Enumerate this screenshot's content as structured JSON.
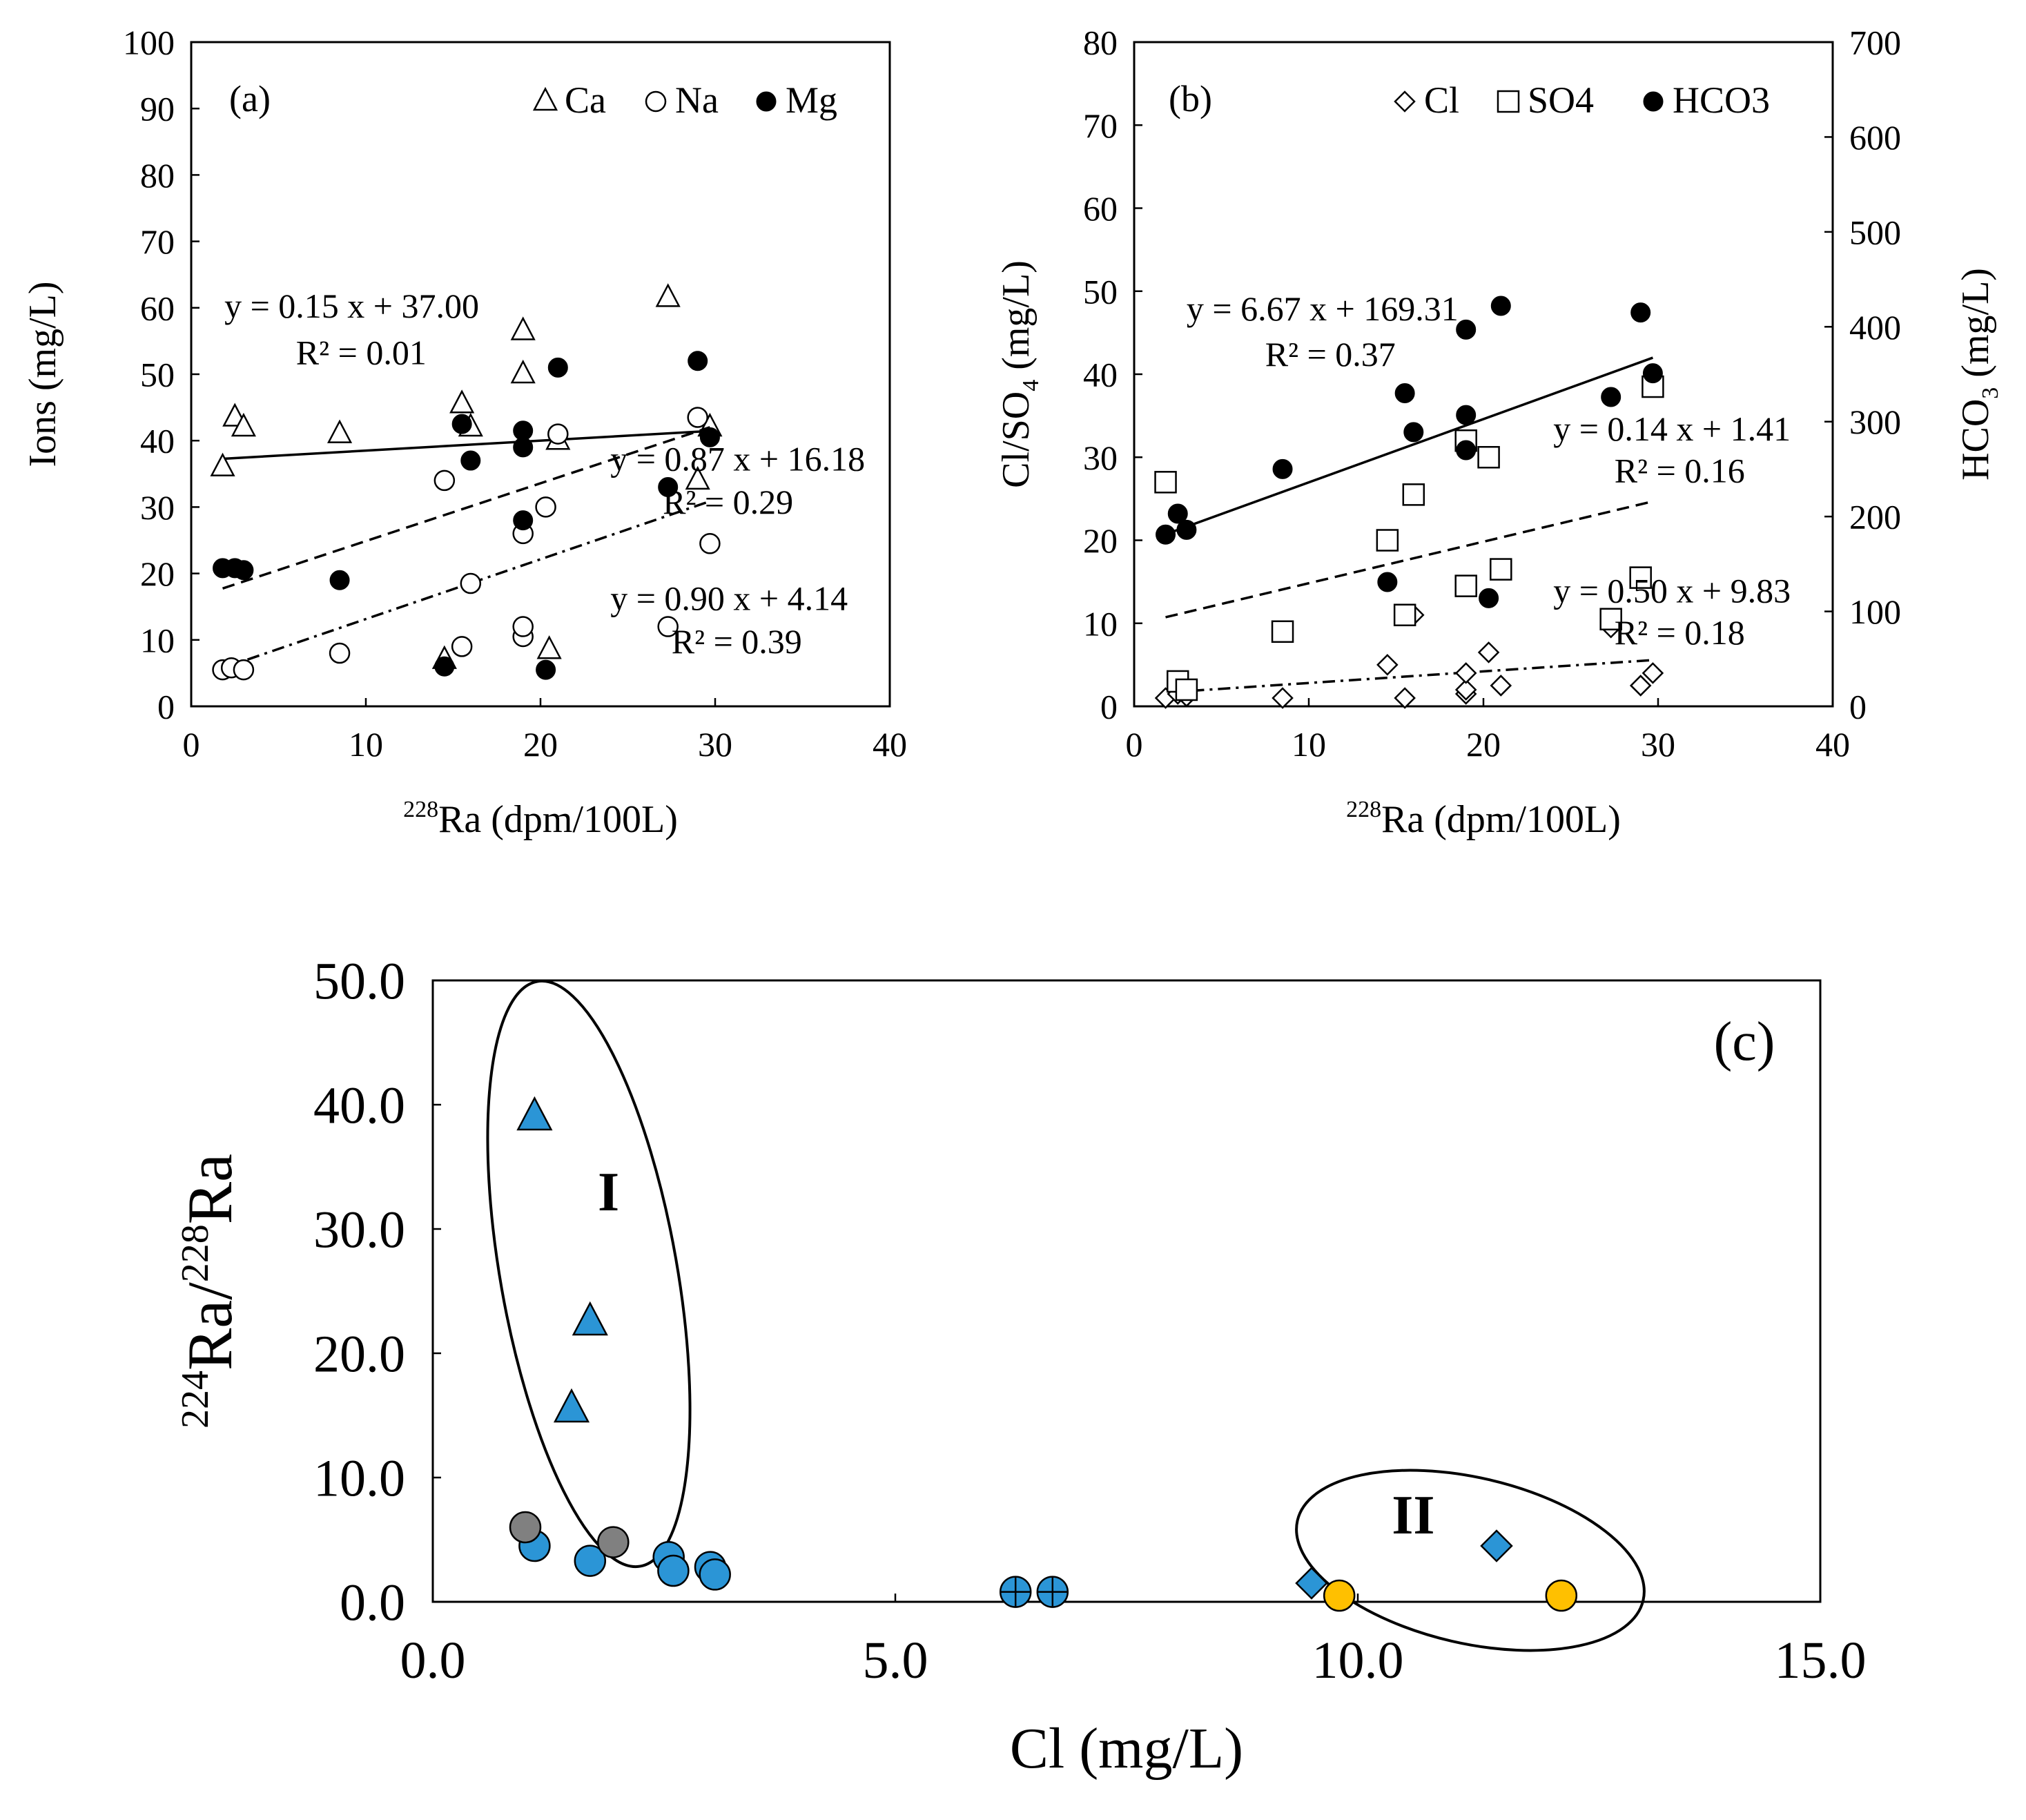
{
  "chart_data": [
    {
      "type": "scatter",
      "panel_label": "(a)",
      "xlabel_sup": "228",
      "xlabel": "Ra (dpm/100L)",
      "ylabel": "Ions (mg/L)",
      "xlim": [
        0,
        40
      ],
      "ylim": [
        0,
        100
      ],
      "xticks": [
        "0",
        "10",
        "20",
        "30",
        "40"
      ],
      "yticks": [
        "0",
        "10",
        "20",
        "30",
        "40",
        "50",
        "60",
        "70",
        "80",
        "90",
        "100"
      ],
      "legend": [
        "Ca",
        "Na",
        "Mg"
      ],
      "legend_position": "top-right",
      "series": [
        {
          "name": "Ca",
          "marker": "open-triangle",
          "points": [
            [
              1.8,
              36
            ],
            [
              2.5,
              43.5
            ],
            [
              3,
              42
            ],
            [
              8.5,
              41
            ],
            [
              14.5,
              7
            ],
            [
              15.5,
              45.5
            ],
            [
              16,
              42
            ],
            [
              19,
              56.5
            ],
            [
              19,
              50
            ],
            [
              20.5,
              8.5
            ],
            [
              21,
              40
            ],
            [
              27.3,
              61.5
            ],
            [
              29,
              34
            ],
            [
              29.7,
              42
            ]
          ],
          "fit": {
            "slope": 0.15,
            "intercept": 37.0,
            "x_range": [
              1.8,
              29.7
            ],
            "style": "solid"
          }
        },
        {
          "name": "Na",
          "marker": "open-circle",
          "points": [
            [
              1.8,
              5.5
            ],
            [
              2.3,
              5.8
            ],
            [
              3,
              5.5
            ],
            [
              8.5,
              8
            ],
            [
              14.5,
              34
            ],
            [
              15.5,
              9
            ],
            [
              16,
              18.5
            ],
            [
              19,
              10.5
            ],
            [
              19,
              12
            ],
            [
              19,
              26
            ],
            [
              20.3,
              30
            ],
            [
              21,
              41
            ],
            [
              27.3,
              12
            ],
            [
              29,
              43.5
            ],
            [
              29.7,
              24.5
            ]
          ],
          "fit": {
            "slope": 0.9,
            "intercept": 4.14,
            "x_range": [
              1.8,
              29.7
            ],
            "style": "dash-dot"
          }
        },
        {
          "name": "Mg",
          "marker": "filled-circle",
          "points": [
            [
              1.8,
              20.8
            ],
            [
              2.5,
              20.8
            ],
            [
              3,
              20.5
            ],
            [
              8.5,
              19
            ],
            [
              14.5,
              6
            ],
            [
              15.5,
              42.5
            ],
            [
              16,
              37
            ],
            [
              19,
              39
            ],
            [
              19,
              41.5
            ],
            [
              19,
              28
            ],
            [
              20.3,
              5.5
            ],
            [
              21,
              51
            ],
            [
              27.3,
              33
            ],
            [
              29,
              52
            ],
            [
              29.7,
              40.5
            ]
          ],
          "fit": {
            "slope": 0.87,
            "intercept": 16.18,
            "x_range": [
              1.8,
              29.7
            ],
            "style": "dashed"
          }
        }
      ],
      "annotations": [
        {
          "text": "y = 0.15 x + 37.00",
          "x": 1.9,
          "y": 58.5
        },
        {
          "text": "R² = 0.01",
          "x": 6,
          "y": 51.5
        },
        {
          "text": "y = 0.87 x + 16.18",
          "x": 24,
          "y": 35.5
        },
        {
          "text": "R² = 0.29",
          "x": 27,
          "y": 29
        },
        {
          "text": "y = 0.90 x + 4.14",
          "x": 24,
          "y": 14.5
        },
        {
          "text": "R² = 0.39",
          "x": 27.5,
          "y": 8
        }
      ]
    },
    {
      "type": "scatter",
      "panel_label": "(b)",
      "xlabel_sup": "228",
      "xlabel": "Ra (dpm/100L)",
      "ylabel_left_parts": [
        "Cl/SO",
        "4",
        " (mg/L)"
      ],
      "ylabel_right_parts": [
        "HCO",
        "3",
        " (mg/L)"
      ],
      "xlim": [
        0,
        40
      ],
      "ylim_left": [
        0,
        80
      ],
      "ylim_right": [
        0,
        700
      ],
      "xticks": [
        "0",
        "10",
        "20",
        "30",
        "40"
      ],
      "yticks_left": [
        "0",
        "10",
        "20",
        "30",
        "40",
        "50",
        "60",
        "70",
        "80"
      ],
      "yticks_right": [
        "0",
        "100",
        "200",
        "300",
        "400",
        "500",
        "600",
        "700"
      ],
      "legend": [
        "Cl",
        "SO4",
        "HCO3"
      ],
      "legend_position": "top-right",
      "series": [
        {
          "name": "Cl",
          "marker": "open-diamond",
          "axis": "left",
          "points": [
            [
              1.8,
              1
            ],
            [
              2.5,
              1.5
            ],
            [
              3,
              1.2
            ],
            [
              8.5,
              1
            ],
            [
              14.5,
              5
            ],
            [
              15.5,
              1
            ],
            [
              16,
              11
            ],
            [
              19,
              1.5
            ],
            [
              19,
              2
            ],
            [
              19,
              4
            ],
            [
              20.3,
              6.5
            ],
            [
              21,
              2.5
            ],
            [
              27.3,
              9.5
            ],
            [
              29,
              2.5
            ],
            [
              29.7,
              4
            ]
          ],
          "fit": {
            "slope": 0.14,
            "intercept": 1.41,
            "x_range": [
              1.8,
              29.7
            ],
            "style": "dash-dot"
          }
        },
        {
          "name": "SO4",
          "marker": "open-square",
          "axis": "left",
          "points": [
            [
              1.8,
              27
            ],
            [
              2.5,
              3
            ],
            [
              3,
              2
            ],
            [
              8.5,
              9
            ],
            [
              14.5,
              20
            ],
            [
              15.5,
              11
            ],
            [
              16,
              25.5
            ],
            [
              19,
              14.5
            ],
            [
              19,
              32
            ],
            [
              20.3,
              30
            ],
            [
              21,
              16.5
            ],
            [
              27.3,
              10.5
            ],
            [
              29,
              15.5
            ],
            [
              29.7,
              38.5
            ]
          ],
          "fit": {
            "slope": 0.5,
            "intercept": 9.83,
            "x_range": [
              1.8,
              29.7
            ],
            "style": "dashed"
          }
        },
        {
          "name": "HCO3",
          "marker": "filled-circle",
          "axis": "right",
          "points": [
            [
              1.8,
              181
            ],
            [
              2.5,
              203
            ],
            [
              3,
              186
            ],
            [
              8.5,
              250
            ],
            [
              14.5,
              131
            ],
            [
              15.5,
              330
            ],
            [
              16,
              289
            ],
            [
              19,
              397
            ],
            [
              19,
              307
            ],
            [
              19,
              270
            ],
            [
              20.3,
              114
            ],
            [
              21,
              422
            ],
            [
              27.3,
              326
            ],
            [
              29,
              415
            ],
            [
              29.7,
              351
            ]
          ],
          "fit": {
            "slope": 6.67,
            "intercept": 169.31,
            "x_range": [
              1.8,
              29.7
            ],
            "style": "solid"
          }
        }
      ],
      "annotations": [
        {
          "text": "y = 6.67 x + 169.31",
          "x": 3,
          "y": 46.5
        },
        {
          "text": "R² = 0.37",
          "x": 7.5,
          "y": 41
        },
        {
          "text": "y = 0.14 x + 1.41",
          "x": 24,
          "y": 32
        },
        {
          "text": "R² = 0.16",
          "x": 27.5,
          "y": 27
        },
        {
          "text": "y = 0.50 x + 9.83",
          "x": 24,
          "y": 12.5
        },
        {
          "text": "R² = 0.18",
          "x": 27.5,
          "y": 7.5
        }
      ]
    },
    {
      "type": "scatter",
      "panel_label": "(c)",
      "xlabel": "Cl (mg/L)",
      "ylabel_parts": [
        "224",
        "Ra/",
        "228",
        "Ra"
      ],
      "xlim": [
        0,
        15
      ],
      "ylim": [
        0,
        50
      ],
      "xticks": [
        "0.0",
        "5.0",
        "10.0",
        "15.0"
      ],
      "yticks": [
        "0.0",
        "10.0",
        "20.0",
        "30.0",
        "40.0",
        "50.0"
      ],
      "groups": [
        {
          "label": "I",
          "label_at": [
            1.9,
            31.5
          ]
        },
        {
          "label": "II",
          "label_at": [
            10.6,
            5.5
          ]
        }
      ],
      "series": [
        {
          "marker": "triangle",
          "color": "#2b95d6",
          "points": [
            [
              1.1,
              39
            ],
            [
              1.7,
              22.5
            ],
            [
              1.5,
              15.5
            ]
          ]
        },
        {
          "marker": "circle",
          "color": "#2b95d6",
          "points": [
            [
              1.1,
              4.5
            ],
            [
              1.7,
              3.3
            ],
            [
              2.55,
              3.6
            ],
            [
              2.6,
              2.5
            ],
            [
              3.0,
              2.8
            ],
            [
              3.05,
              2.2
            ]
          ]
        },
        {
          "marker": "circle",
          "color": "#808080",
          "points": [
            [
              1.0,
              6
            ],
            [
              1.95,
              4.8
            ]
          ]
        },
        {
          "marker": "circle-plus",
          "color": "#2b95d6",
          "points": [
            [
              6.3,
              0.8
            ],
            [
              6.7,
              0.8
            ]
          ]
        },
        {
          "marker": "diamond",
          "color": "#2b95d6",
          "points": [
            [
              9.5,
              1.5
            ],
            [
              11.5,
              4.5
            ]
          ]
        },
        {
          "marker": "circle",
          "color": "#ffc000",
          "points": [
            [
              9.8,
              0.5
            ],
            [
              12.2,
              0.5
            ]
          ]
        }
      ]
    }
  ]
}
